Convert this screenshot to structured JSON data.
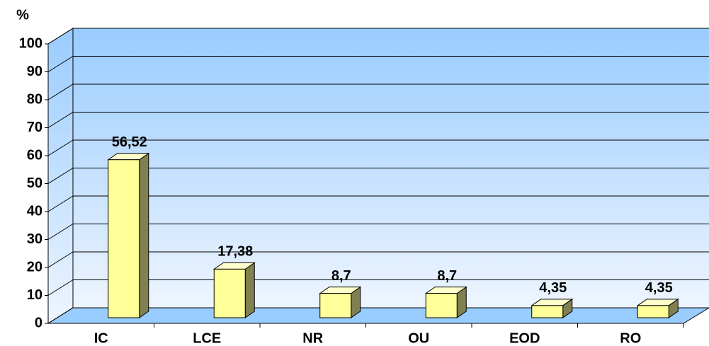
{
  "chart_data": {
    "type": "bar",
    "y_label": "%",
    "categories": [
      "IC",
      "LCE",
      "NR",
      "OU",
      "EOD",
      "RO"
    ],
    "values": [
      56.52,
      17.38,
      8.7,
      8.7,
      4.35,
      4.35
    ],
    "value_labels": [
      "56,52",
      "17,38",
      "8,7",
      "8,7",
      "4,35",
      "4,35"
    ],
    "color": "#ffff99",
    "ylim": [
      0,
      100
    ],
    "yticks": [
      0,
      10,
      20,
      30,
      40,
      50,
      60,
      70,
      80,
      90,
      100
    ],
    "grid": true
  }
}
